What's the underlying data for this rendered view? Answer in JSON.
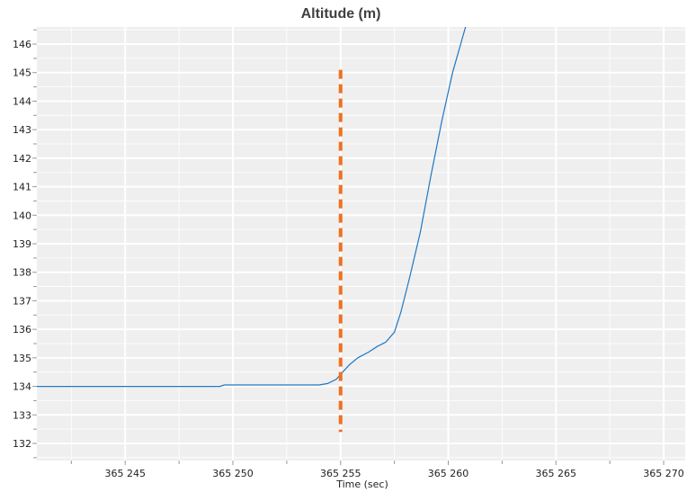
{
  "chart_data": {
    "type": "line",
    "title": "Altitude (m)",
    "xlabel": "Time (sec)",
    "ylabel": "",
    "xlim": [
      365240.9,
      365271
    ],
    "ylim": [
      131.4,
      146.6
    ],
    "x_ticks": [
      365245,
      365250,
      365255,
      365260,
      365265,
      365270
    ],
    "x_tick_labels": [
      "365 245",
      "365 250",
      "365 255",
      "365 260",
      "365 265",
      "365 270"
    ],
    "y_ticks": [
      132,
      133,
      134,
      135,
      136,
      137,
      138,
      139,
      140,
      141,
      142,
      143,
      144,
      145,
      146
    ],
    "y_tick_labels": [
      "132",
      "133",
      "134",
      "135",
      "136",
      "137",
      "138",
      "139",
      "140",
      "141",
      "142",
      "143",
      "144",
      "145",
      "146"
    ],
    "grid": true,
    "colors": {
      "plot_background": "#efefef",
      "grid": "#ffffff",
      "series": "#1f77c4",
      "marker": "#f07020"
    },
    "series": [
      {
        "x": [
          365240.9,
          365249.4,
          365249.6,
          365254.0,
          365254.4,
          365254.8,
          365255.1,
          365255.4,
          365255.8,
          365256.3,
          365256.7,
          365257.1,
          365257.5,
          365257.8,
          365258.2,
          365258.7,
          365259.2,
          365259.7,
          365260.2,
          365260.8,
          365261.3
        ],
        "y": [
          134.0,
          134.0,
          134.05,
          134.05,
          134.1,
          134.25,
          134.5,
          134.75,
          135.0,
          135.2,
          135.4,
          135.55,
          135.9,
          136.6,
          137.8,
          139.4,
          141.4,
          143.3,
          145.0,
          146.6,
          147.9
        ]
      }
    ],
    "vertical_marker": {
      "x": 365255,
      "y_start": 132.4,
      "y_end": 145.1,
      "style": "dashed"
    }
  }
}
